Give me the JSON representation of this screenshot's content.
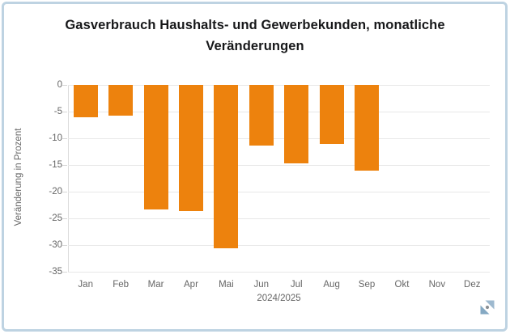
{
  "frame": {
    "border_color": "#bed3e2",
    "background": "#ffffff"
  },
  "chart_data": {
    "type": "bar",
    "title": "Gasverbrauch Haushalts- und Gewerbekunden, monatliche Veränderungen",
    "xlabel": "2024/2025",
    "ylabel": "Veränderung in Prozent",
    "categories": [
      "Jan",
      "Feb",
      "Mar",
      "Apr",
      "Mai",
      "Jun",
      "Jul",
      "Aug",
      "Sep",
      "Okt",
      "Nov",
      "Dez"
    ],
    "values": [
      -6.0,
      -5.8,
      -23.4,
      -23.7,
      -30.6,
      -11.3,
      -14.7,
      -11.0,
      -16.1,
      null,
      null,
      null
    ],
    "ylim": [
      -35,
      0
    ],
    "yticks": [
      0,
      -5,
      -10,
      -15,
      -20,
      -25,
      -30,
      -35
    ],
    "grid": true,
    "legend": "none",
    "bar_color": "#ed820d",
    "gridline_color": "#e8e8e8",
    "label_color": "#666666",
    "title_color": "#17181a"
  },
  "watermark": {
    "label": "amcharts-logo",
    "triangle_top_color": "#9db9cf",
    "triangle_bottom_color": "#85a9c3",
    "dot_color": "#8a8f94"
  }
}
